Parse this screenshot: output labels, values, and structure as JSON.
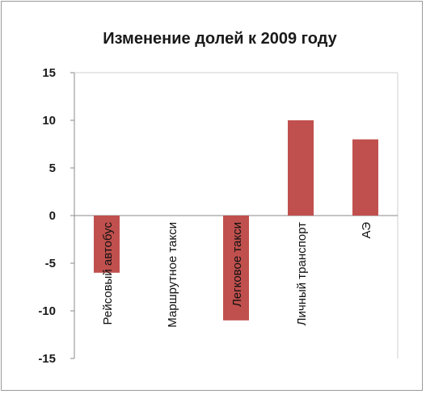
{
  "chart_data": {
    "type": "bar",
    "title": "Изменение долей к 2009 году",
    "xlabel": "",
    "ylabel": "",
    "categories": [
      "Рейсовый автобус",
      "Маршрутное такси",
      "Легковое такси",
      "Личный транспорт",
      "АЭ"
    ],
    "values": [
      -6,
      0,
      -11,
      10,
      8
    ],
    "ylim": [
      -15,
      15
    ],
    "yticks": [
      15,
      10,
      5,
      0,
      -5,
      -10,
      -15
    ],
    "grid": false,
    "legend": "none",
    "bar_color": "#c0504d"
  }
}
